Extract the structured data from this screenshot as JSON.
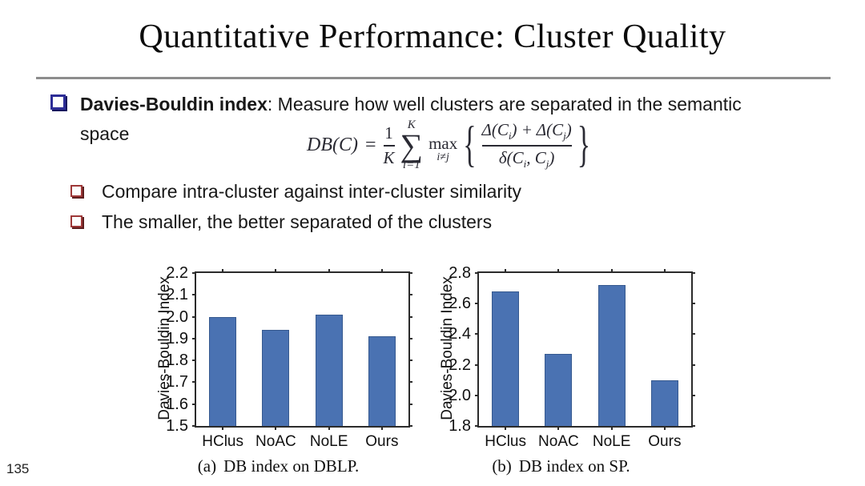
{
  "title": "Quantitative Performance: Cluster Quality",
  "page_number": "135",
  "bullets": {
    "main_bold": "Davies-Bouldin index",
    "main_rest": ": Measure how well clusters are separated in the semantic",
    "main_line2": "space",
    "sub": [
      "Compare intra-cluster against inter-cluster similarity",
      "The smaller, the better separated of the clusters"
    ]
  },
  "formula": {
    "lhs": "DB(C)",
    "eq": "=",
    "frac1_num": "1",
    "frac1_den": "K",
    "sum_top": "K",
    "sum_sym": "∑",
    "sum_bottom": "i=1",
    "max_label": "max",
    "max_sub": "i≠j",
    "brace_left": "{",
    "brace_right": "}",
    "num_a": "Δ(C",
    "sub_i": "i",
    "num_b": ") + Δ(C",
    "sub_j": "j",
    "close_paren": ")",
    "den_a": "δ(C",
    "den_b": ", C"
  },
  "colors": {
    "bar_fill": "#4a72b2",
    "bar_edge": "#36598f",
    "axis": "#2b2b2b",
    "rule": "#8d8d8d",
    "bullet_main": "#2d2d96",
    "bullet_sub": "#9e3838"
  },
  "chart_data": [
    {
      "type": "bar",
      "title": "DB index on DBLP",
      "caption_prefix": "(a)",
      "caption": "DB index on DBLP.",
      "xlabel": "",
      "ylabel": "Davies-Bouldin Index",
      "categories": [
        "HClus",
        "NoAC",
        "NoLE",
        "Ours"
      ],
      "values": [
        2.0,
        1.94,
        2.01,
        1.91
      ],
      "ylim": [
        1.5,
        2.2
      ],
      "yticks": [
        1.5,
        1.6,
        1.7,
        1.8,
        1.9,
        2.0,
        2.1,
        2.2
      ],
      "grid": false,
      "legend": false
    },
    {
      "type": "bar",
      "title": "DB index on SP",
      "caption_prefix": "(b)",
      "caption": "DB index on SP.",
      "xlabel": "",
      "ylabel": "Davies-Bouldin Index",
      "categories": [
        "HClus",
        "NoAC",
        "NoLE",
        "Ours"
      ],
      "values": [
        2.68,
        2.27,
        2.72,
        2.1
      ],
      "ylim": [
        1.8,
        2.8
      ],
      "yticks": [
        1.8,
        2.0,
        2.2,
        2.4,
        2.6,
        2.8
      ],
      "grid": false,
      "legend": false
    }
  ]
}
